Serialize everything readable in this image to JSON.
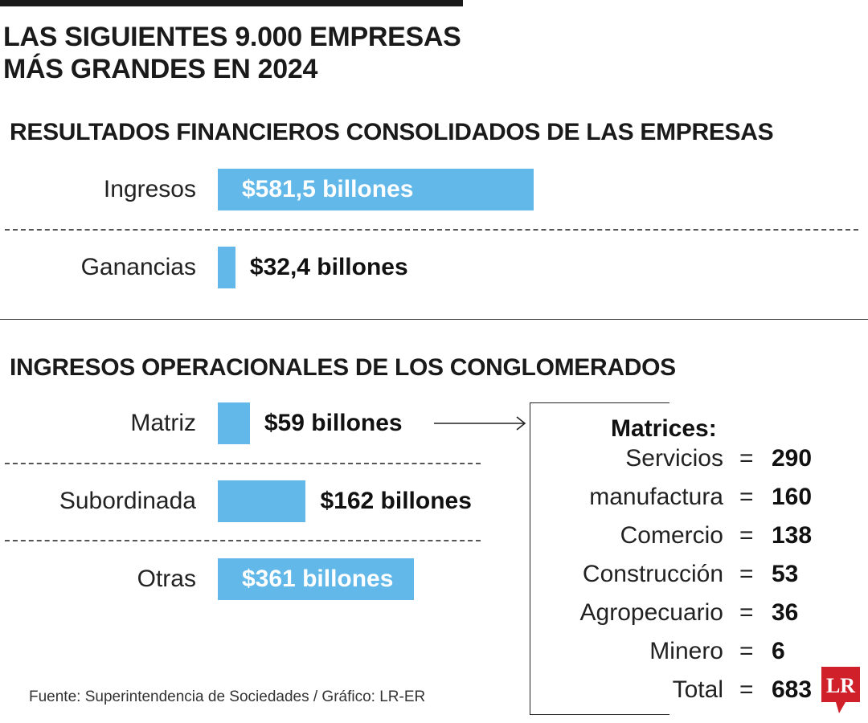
{
  "title": {
    "line1": "LAS SIGUIENTES 9.000 EMPRESAS",
    "line2": "MÁS GRANDES EN 2024"
  },
  "colors": {
    "bar": "#62b8e8",
    "logo_red": "#d0202a"
  },
  "icons": {
    "arrow": "right-arrow-icon",
    "logo": "lr-logo-icon"
  },
  "chart_data": [
    {
      "type": "bar",
      "orientation": "horizontal",
      "title": "RESULTADOS FINANCIEROS CONSOLIDADOS DE LAS EMPRESAS",
      "unit": "billones",
      "categories": [
        "Ingresos",
        "Ganancias"
      ],
      "values": [
        581.5,
        32.4
      ],
      "data_labels": [
        "$581,5 billones",
        "$32,4 billones"
      ]
    },
    {
      "type": "bar",
      "orientation": "horizontal",
      "title": "INGRESOS OPERACIONALES DE LOS CONGLOMERADOS",
      "unit": "billones",
      "categories": [
        "Matriz",
        "Subordinada",
        "Otras"
      ],
      "values": [
        59,
        162,
        361
      ],
      "data_labels": [
        "$59 billones",
        "$162 billones",
        "$361 billones"
      ]
    },
    {
      "type": "table",
      "title": "Matrices:",
      "rows": [
        {
          "label": "Servicios",
          "value": 290
        },
        {
          "label": "manufactura",
          "value": 160
        },
        {
          "label": "Comercio",
          "value": 138
        },
        {
          "label": "Construcción",
          "value": 53
        },
        {
          "label": "Agropecuario",
          "value": 36
        },
        {
          "label": "Minero",
          "value": 6
        },
        {
          "label": "Total",
          "value": 683
        }
      ]
    }
  ],
  "source": "Fuente: Superintendencia de Sociedades / Gráfico: LR-ER",
  "logo_text": "LR"
}
